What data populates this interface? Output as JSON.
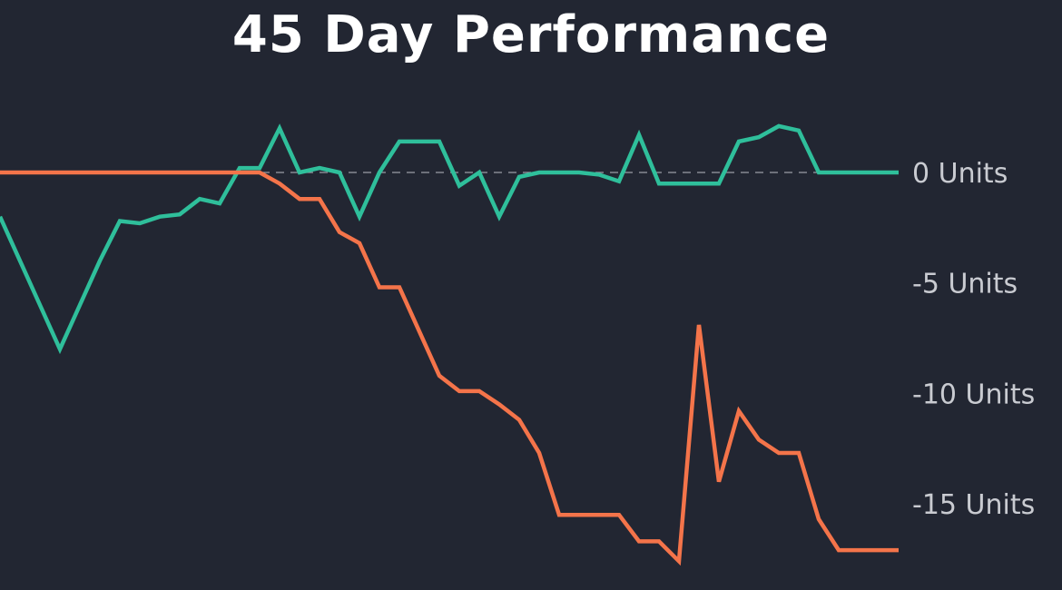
{
  "chart_data": {
    "type": "line",
    "title": "45 Day Performance",
    "xlabel": "",
    "ylabel": "",
    "x": [
      1,
      2,
      3,
      4,
      5,
      6,
      7,
      8,
      9,
      10,
      11,
      12,
      13,
      14,
      15,
      16,
      17,
      18,
      19,
      20,
      21,
      22,
      23,
      24,
      25,
      26,
      27,
      28,
      29,
      30,
      31,
      32,
      33,
      34,
      35,
      36,
      37,
      38,
      39,
      40,
      41,
      42,
      43,
      44,
      45,
      46
    ],
    "ylim": [
      -18,
      2.5
    ],
    "yticks": [
      0,
      -5,
      -10,
      -15
    ],
    "ytick_labels": [
      "0 Units",
      "-5 Units",
      "-10 Units",
      "-15 Units"
    ],
    "zero_line": true,
    "grid": false,
    "legend": "none",
    "series": [
      {
        "color": "#2fbf9b",
        "values": [
          -2,
          -4,
          -6,
          -8,
          -6,
          -4,
          -2.2,
          -2.3,
          -2,
          -1.9,
          -1.2,
          -1.4,
          0.2,
          0.2,
          2,
          0,
          0.2,
          0,
          -2,
          0,
          1.4,
          1.4,
          1.4,
          -0.6,
          0,
          -2,
          -0.2,
          0,
          0,
          0,
          -0.1,
          -0.4,
          1.7,
          -0.5,
          -0.5,
          -0.5,
          -0.5,
          1.4,
          1.6,
          2.1,
          1.9,
          0,
          0,
          0,
          0,
          0
        ]
      },
      {
        "color": "#f4744a",
        "values": [
          0,
          0,
          0,
          0,
          0,
          0,
          0,
          0,
          0,
          0,
          0,
          0,
          0,
          0,
          -0.5,
          -1.2,
          -1.2,
          -2.7,
          -3.2,
          -5.2,
          -5.2,
          -7.2,
          -9.2,
          -9.9,
          -9.9,
          -10.5,
          -11.2,
          -12.7,
          -15.5,
          -15.5,
          -15.5,
          -15.5,
          -16.7,
          -16.7,
          -17.6,
          -6.9,
          -14,
          -10.8,
          -12.1,
          -12.7,
          -12.7,
          -15.7,
          -17.1,
          -17.1,
          -17.1,
          -17.1
        ]
      }
    ]
  }
}
